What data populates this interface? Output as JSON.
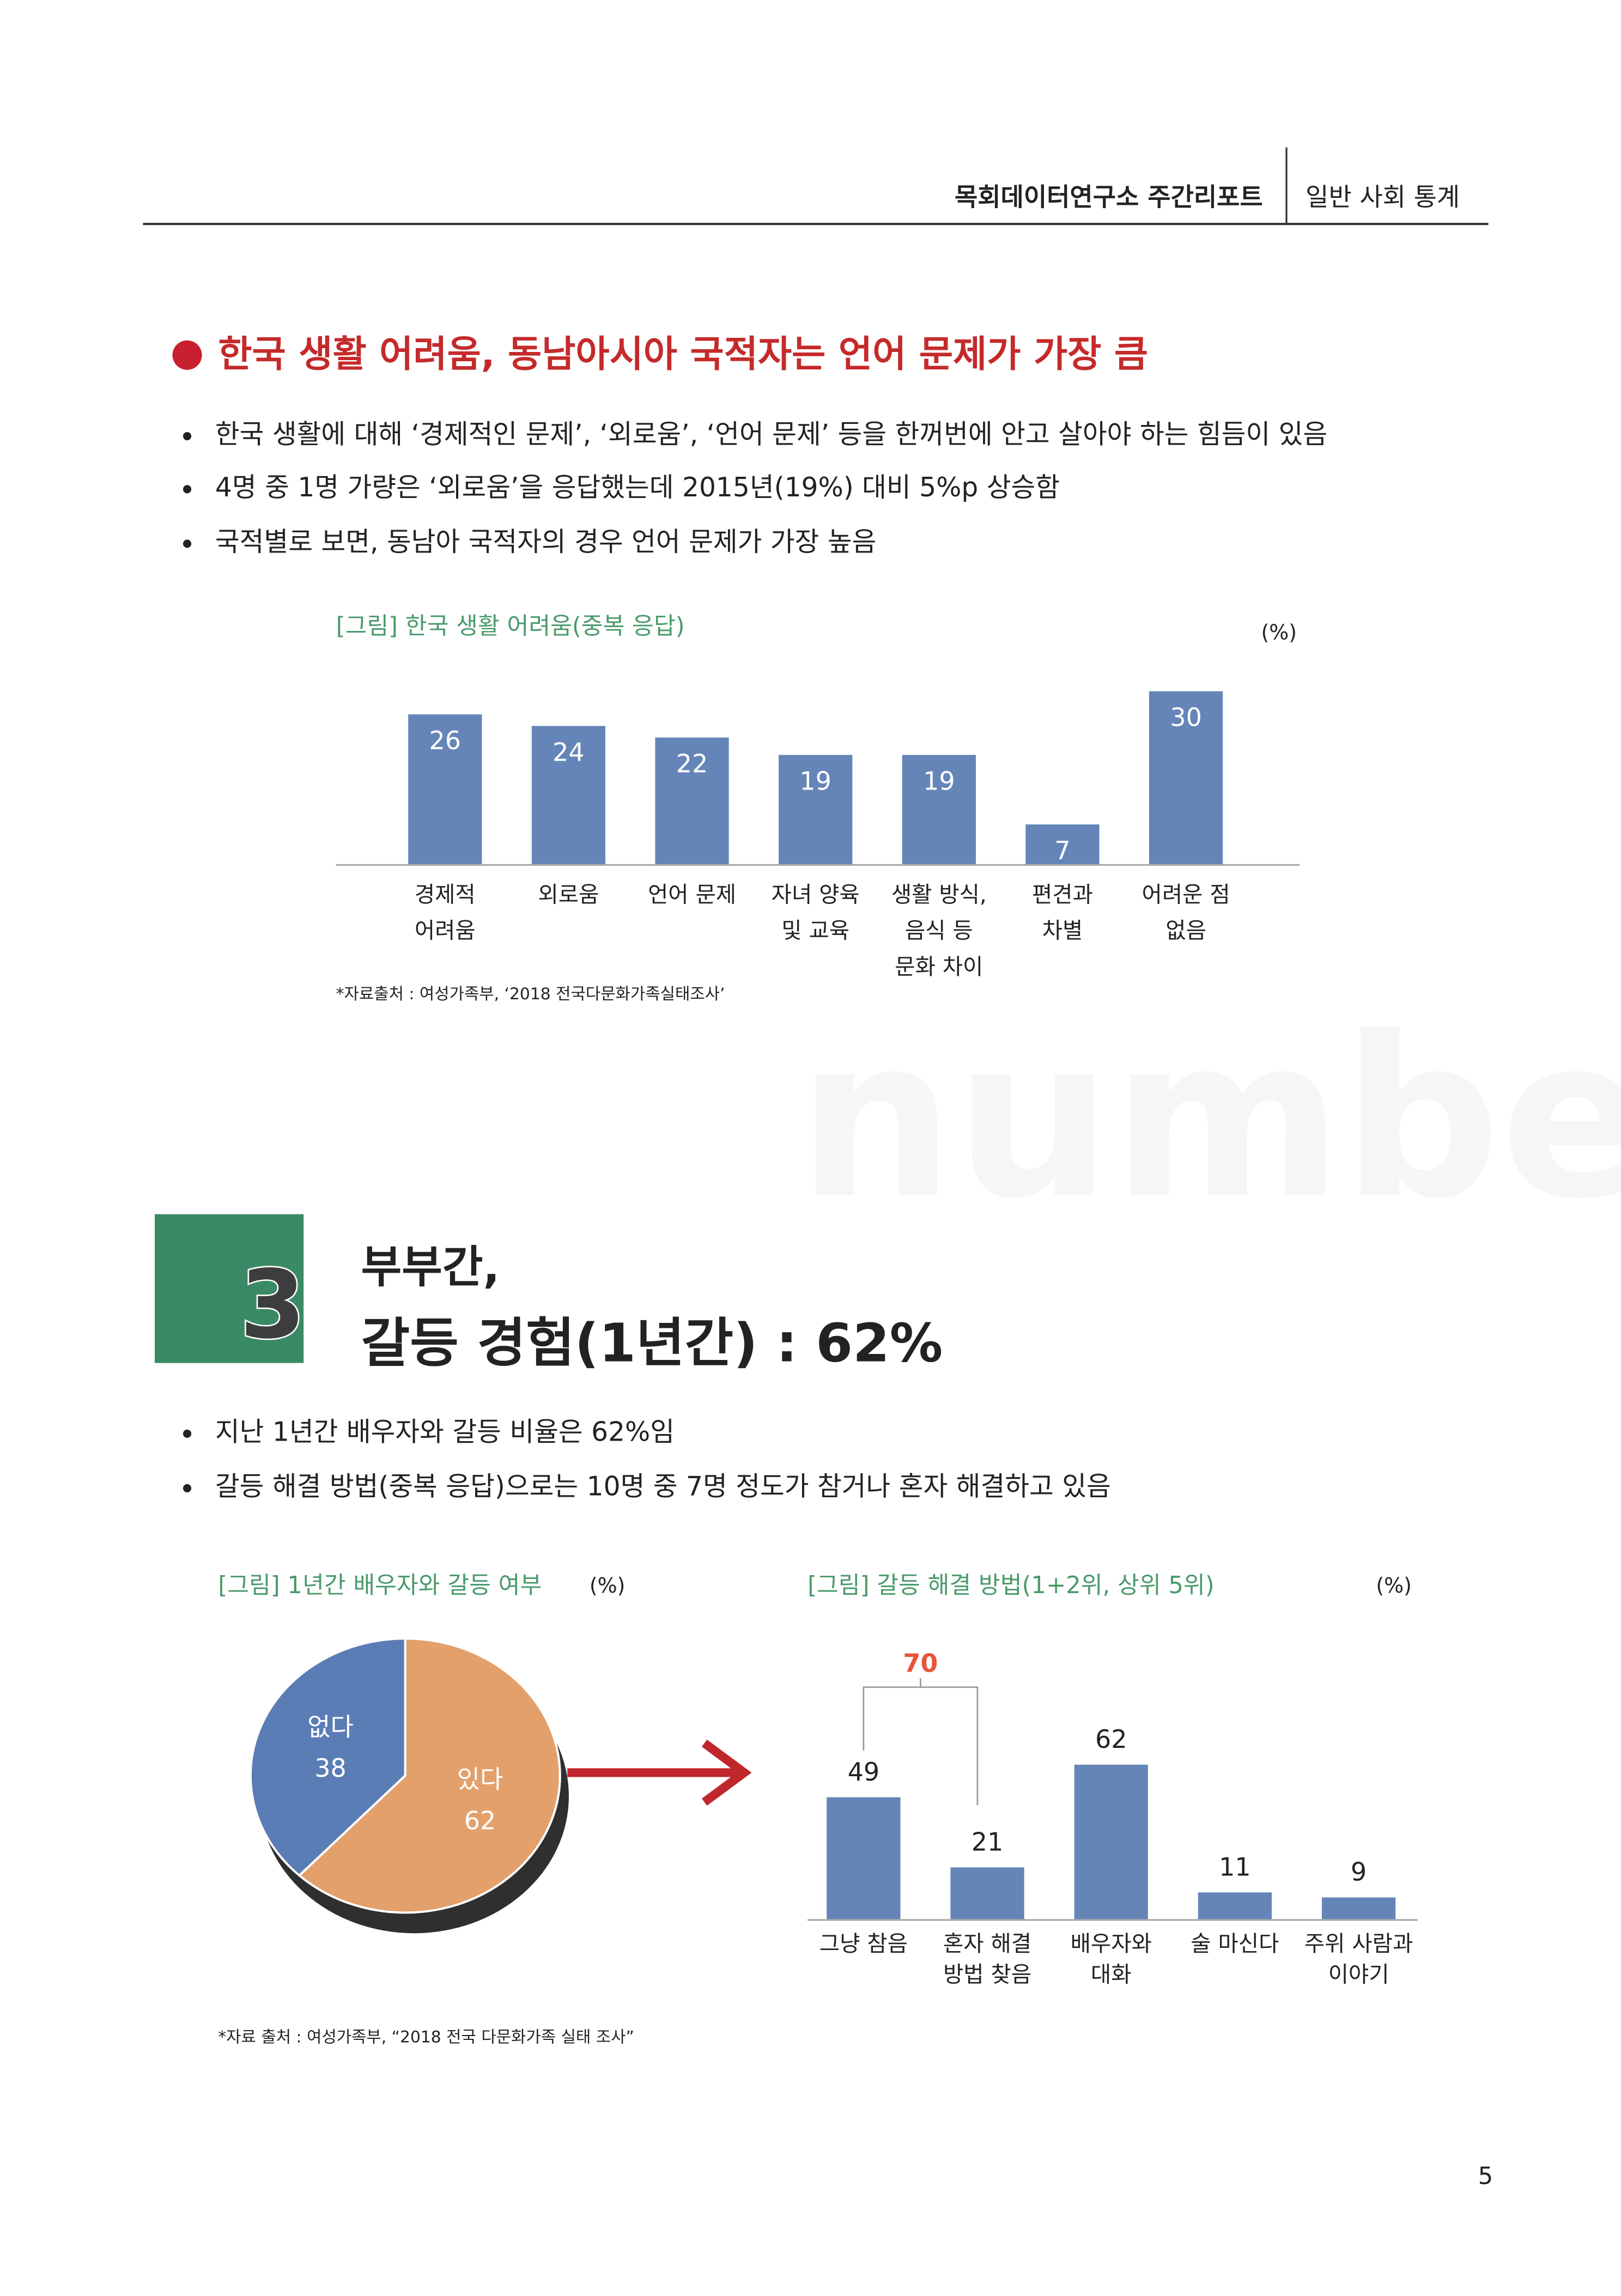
{
  "header": {
    "title": "목회데이터연구소 주간리포트",
    "section": "일반 사회 통계"
  },
  "section1": {
    "heading": "한국 생활 어려움, 동남아시아 국적자는 언어 문제가 가장 큼",
    "bullets": [
      "한국 생활에 대해 ‘경제적인 문제’, ‘외로움’, ‘언어 문제’ 등을 한꺼번에 안고 살아야 하는 힘듬이 있음",
      "4명 중 1명 가량은 ‘외로움’을 응답했는데 2015년(19%) 대비 5%p 상승함",
      "국적별로 보면, 동남아 국적자의 경우 언어 문제가 가장 높음"
    ],
    "source": "*자료출처 : 여성가족부, ‘2018 전국다문화가족실태조사’"
  },
  "watermark": "numbers",
  "section3": {
    "number": "3",
    "title": [
      "부부간,",
      "갈등 경험(1년간) : 62%"
    ],
    "bullets": [
      "지난 1년간 배우자와 갈등 비율은 62%임",
      "갈등 해결 방법(중복 응답)으로는 10명 중 7명 정도가 참거나 혼자 해결하고 있음"
    ],
    "source": "*자료 출처 : 여성가족부, “2018 전국 다문화가족 실태 조사”"
  },
  "chart_data": [
    {
      "type": "bar",
      "title": "[그림] 한국 생활 어려움(중복 응답)",
      "unit": "(%)",
      "categories": [
        [
          "경제적",
          "어려움"
        ],
        [
          "외로움"
        ],
        [
          "언어 문제"
        ],
        [
          "자녀 양육",
          "및 교육"
        ],
        [
          "생활 방식,",
          "음식 등",
          "문화 차이"
        ],
        [
          "편견과",
          "차별"
        ],
        [
          "어려운 점",
          "없음"
        ]
      ],
      "values": [
        26,
        24,
        22,
        19,
        19,
        7,
        30
      ],
      "color": "#6585b9"
    },
    {
      "type": "pie",
      "title": "[그림] 1년간 배우자와 갈등 여부",
      "unit": "(%)",
      "categories": [
        "없다",
        "있다"
      ],
      "values": [
        38,
        62
      ],
      "colors": [
        "#5b7db5",
        "#e3a06b"
      ]
    },
    {
      "type": "bar",
      "title": "[그림] 갈등 해결 방법(1+2위, 상위 5위)",
      "unit": "(%)",
      "categories": [
        [
          "그냥 참음"
        ],
        [
          "혼자 해결",
          "방법 찾음"
        ],
        [
          "배우자와",
          "대화"
        ],
        [
          "술 마신다"
        ],
        [
          "주위 사람과",
          "이야기"
        ]
      ],
      "values": [
        49,
        21,
        62,
        11,
        9
      ],
      "color": "#6585b9",
      "annotation": 70,
      "annotation_color": "#e8553a"
    }
  ],
  "page_number": "5"
}
